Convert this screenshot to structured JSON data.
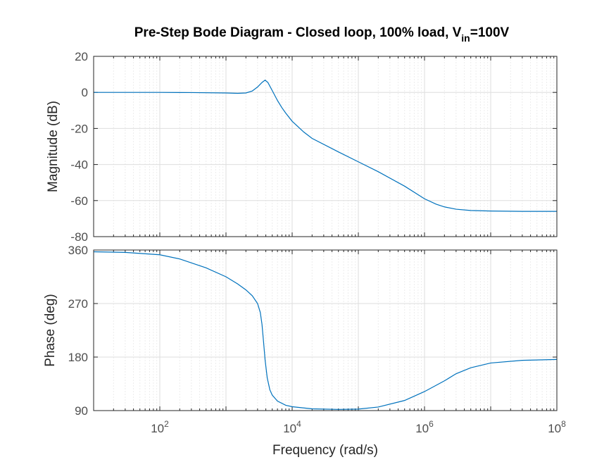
{
  "chart_data": {
    "type": "line",
    "title": {
      "prefix": "Pre-Step Bode Diagram - Closed loop, 100% load, V",
      "subscript": "in",
      "suffix": "=100V"
    },
    "xlabel": "Frequency  (rad/s)",
    "xscale": "log",
    "xlim": [
      10,
      100000000
    ],
    "x_ticks": [
      {
        "value": 100,
        "base": "10",
        "exp": "2"
      },
      {
        "value": 10000,
        "base": "10",
        "exp": "4"
      },
      {
        "value": 1000000,
        "base": "10",
        "exp": "6"
      },
      {
        "value": 100000000,
        "base": "10",
        "exp": "8"
      }
    ],
    "grid": true,
    "panels": [
      {
        "name": "magnitude",
        "ylabel": "Magnitude (dB)",
        "ylim": [
          -80,
          20
        ],
        "yticks": [
          "20",
          "0",
          "-20",
          "-40",
          "-60",
          "-80"
        ],
        "ytick_values": [
          20,
          0,
          -20,
          -40,
          -60,
          -80
        ],
        "series": [
          {
            "color": "#0072bd",
            "points": [
              [
                10,
                0
              ],
              [
                100,
                0
              ],
              [
                300,
                -0.1
              ],
              [
                1000,
                -0.3
              ],
              [
                1500,
                -0.5
              ],
              [
                2000,
                -0.3
              ],
              [
                2500,
                0.8
              ],
              [
                3000,
                3
              ],
              [
                3500,
                5.5
              ],
              [
                3900,
                6.8
              ],
              [
                4300,
                5.5
              ],
              [
                5000,
                1
              ],
              [
                6000,
                -4.5
              ],
              [
                7000,
                -8.5
              ],
              [
                8000,
                -11.5
              ],
              [
                10000,
                -16
              ],
              [
                15000,
                -22
              ],
              [
                20000,
                -25.5
              ],
              [
                50000,
                -33
              ],
              [
                100000,
                -38.5
              ],
              [
                200000,
                -44
              ],
              [
                500000,
                -52
              ],
              [
                1000000,
                -59
              ],
              [
                1500000,
                -62
              ],
              [
                2000000,
                -63.5
              ],
              [
                3000000,
                -64.8
              ],
              [
                5000000,
                -65.5
              ],
              [
                10000000,
                -65.8
              ],
              [
                30000000,
                -66
              ],
              [
                100000000,
                -66
              ]
            ]
          }
        ]
      },
      {
        "name": "phase",
        "ylabel": "Phase (deg)",
        "ylim": [
          90,
          360
        ],
        "yticks": [
          "360",
          "270",
          "180",
          "90"
        ],
        "ytick_values": [
          360,
          270,
          180,
          90
        ],
        "series": [
          {
            "color": "#0072bd",
            "points": [
              [
                10,
                357
              ],
              [
                30,
                356
              ],
              [
                100,
                352
              ],
              [
                200,
                345
              ],
              [
                500,
                330
              ],
              [
                1000,
                315
              ],
              [
                1500,
                303
              ],
              [
                2000,
                293
              ],
              [
                2500,
                283
              ],
              [
                3000,
                270
              ],
              [
                3300,
                255
              ],
              [
                3500,
                235
              ],
              [
                3700,
                205
              ],
              [
                3900,
                175
              ],
              [
                4200,
                145
              ],
              [
                4600,
                125
              ],
              [
                5000,
                116
              ],
              [
                6000,
                106
              ],
              [
                8000,
                99
              ],
              [
                10000,
                96.5
              ],
              [
                20000,
                93
              ],
              [
                50000,
                92
              ],
              [
                100000,
                92.5
              ],
              [
                200000,
                96
              ],
              [
                500000,
                107
              ],
              [
                1000000,
                122
              ],
              [
                2000000,
                140
              ],
              [
                3000000,
                152
              ],
              [
                5000000,
                162
              ],
              [
                10000000,
                170
              ],
              [
                30000000,
                174.5
              ],
              [
                100000000,
                176
              ]
            ]
          }
        ]
      }
    ]
  }
}
